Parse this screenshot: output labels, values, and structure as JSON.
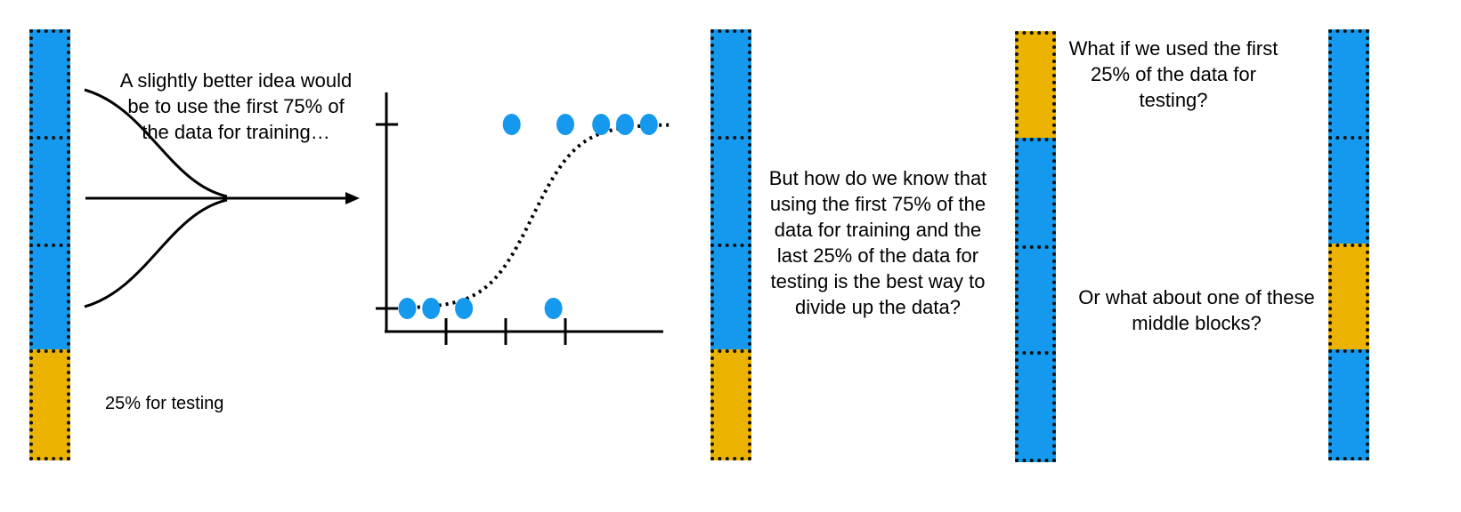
{
  "colors": {
    "train": "#1499EE",
    "test": "#ECB200",
    "ink": "#000000",
    "point": "#1499EE"
  },
  "text": {
    "caption_top": "A slightly better idea would\nbe to use the first 75% of\nthe data for training…",
    "caption_testing": "25% for testing",
    "question_middle": "But how do we know that\nusing the first 75% of the\ndata for training and the\nlast 25% of the data for\ntesting is the best way to\ndivide up the data?",
    "question_first": "What if we used the first\n25% of the data for\ntesting?",
    "question_blocks": "Or what about one of these\nmiddle blocks?"
  },
  "bars": [
    {
      "name": "bar-1",
      "blocks": [
        "train",
        "train",
        "train",
        "test"
      ]
    },
    {
      "name": "bar-2",
      "blocks": [
        "train",
        "train",
        "train",
        "test"
      ]
    },
    {
      "name": "bar-3",
      "blocks": [
        "test",
        "train",
        "train",
        "train"
      ]
    },
    {
      "name": "bar-4",
      "blocks": [
        "train",
        "train",
        "test",
        "train"
      ]
    }
  ],
  "plot": {
    "curve": "dotted-sigmoid",
    "x_ticks": 3,
    "y_ticks": 2,
    "points_high": [
      2.1,
      3.0,
      3.6,
      4.0,
      4.4
    ],
    "points_low": [
      0.35,
      0.75,
      1.3,
      2.8
    ]
  }
}
